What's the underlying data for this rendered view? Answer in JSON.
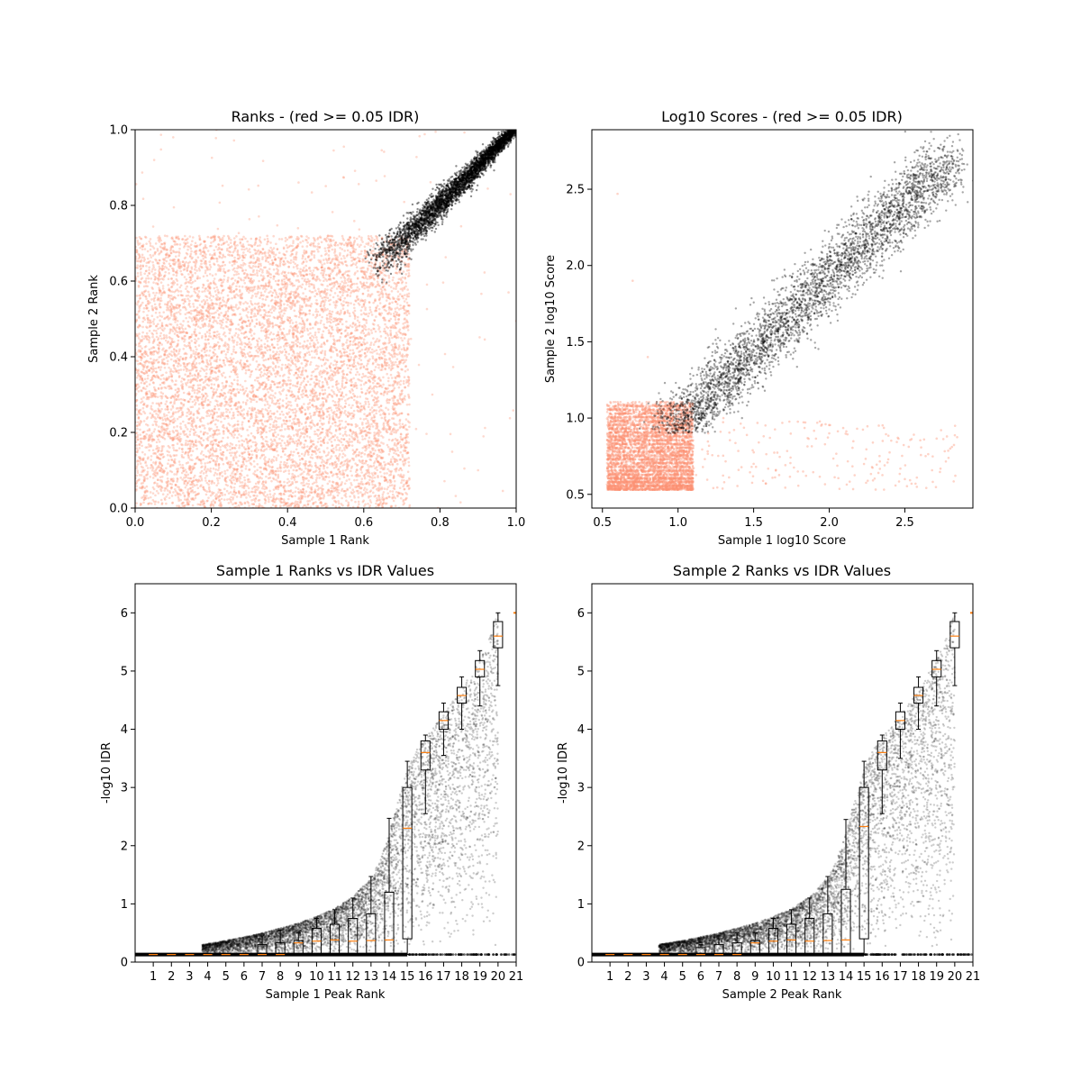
{
  "chart_data": [
    {
      "type": "scatter",
      "title": "Ranks - (red >= 0.05 IDR)",
      "xlabel": "Sample 1 Rank",
      "ylabel": "Sample 2 Rank",
      "xlim": [
        0.0,
        1.0
      ],
      "ylim": [
        0.0,
        1.0
      ],
      "xticks": [
        0.0,
        0.2,
        0.4,
        0.6,
        0.8,
        1.0
      ],
      "xtick_labels": [
        "0.0",
        "0.2",
        "0.4",
        "0.6",
        "0.8",
        "1.0"
      ],
      "yticks": [
        0.0,
        0.2,
        0.4,
        0.6,
        0.8,
        1.0
      ],
      "ytick_labels": [
        "0.0",
        "0.2",
        "0.4",
        "0.6",
        "0.8",
        "1.0"
      ],
      "series_colors": {
        "idr_ge_0_05": "#fc9272",
        "idr_lt_0_05": "#000000"
      },
      "series": [
        {
          "role": "idr_ge_0_05",
          "color": "#fc9272",
          "region_description": "dense uniform block",
          "region": {
            "x": [
              0.0,
              0.72
            ],
            "y": [
              0.0,
              0.72
            ]
          }
        },
        {
          "role": "idr_lt_0_05",
          "color": "#000000",
          "region": "diagonal band from (0.64, 0.64) to (1.0, 1.0)"
        }
      ],
      "points_sample_red": [
        [
          0.05,
          0.05
        ],
        [
          0.15,
          0.35
        ],
        [
          0.3,
          0.6
        ],
        [
          0.45,
          0.2
        ],
        [
          0.6,
          0.5
        ],
        [
          0.7,
          0.1
        ],
        [
          0.1,
          0.68
        ],
        [
          0.55,
          0.68
        ],
        [
          0.78,
          0.3
        ],
        [
          0.9,
          0.1
        ],
        [
          0.98,
          0.57
        ],
        [
          0.05,
          0.92
        ],
        [
          0.1,
          0.98
        ]
      ],
      "points_sample_black": [
        [
          0.66,
          0.66
        ],
        [
          0.7,
          0.7
        ],
        [
          0.75,
          0.76
        ],
        [
          0.8,
          0.8
        ],
        [
          0.85,
          0.86
        ],
        [
          0.9,
          0.9
        ],
        [
          0.95,
          0.95
        ],
        [
          1.0,
          1.0
        ]
      ]
    },
    {
      "type": "scatter",
      "title": "Log10 Scores - (red >= 0.05 IDR)",
      "xlabel": "Sample 1 log10 Score",
      "ylabel": "Sample 2 log10 Score",
      "xlim": [
        0.43,
        2.95
      ],
      "ylim": [
        0.41,
        2.89
      ],
      "xticks": [
        0.5,
        1.0,
        1.5,
        2.0,
        2.5
      ],
      "xtick_labels": [
        "0.5",
        "1.0",
        "1.5",
        "2.0",
        "2.5"
      ],
      "yticks": [
        0.5,
        1.0,
        1.5,
        2.0,
        2.5
      ],
      "ytick_labels": [
        "0.5",
        "1.0",
        "1.5",
        "2.0",
        "2.5"
      ],
      "series": [
        {
          "role": "idr_ge_0_05",
          "color": "#fc9272",
          "region_description": "dense grid block with horizontal streaks",
          "region": {
            "x": [
              0.53,
              1.1
            ],
            "y": [
              0.53,
              1.1
            ]
          }
        },
        {
          "role": "idr_lt_0_05",
          "color": "#000000",
          "region": "diagonal band from (0.95, 0.9) to (2.85, 2.75)"
        }
      ],
      "points_sample_red": [
        [
          0.6,
          2.47
        ],
        [
          0.7,
          1.9
        ],
        [
          0.8,
          1.4
        ],
        [
          1.2,
          0.9
        ],
        [
          1.5,
          0.7
        ],
        [
          2.0,
          0.9
        ],
        [
          2.5,
          0.6
        ],
        [
          2.8,
          0.8
        ],
        [
          1.1,
          0.65
        ],
        [
          1.3,
          1.0
        ]
      ],
      "points_sample_black": [
        [
          0.95,
          0.9
        ],
        [
          1.2,
          1.2
        ],
        [
          1.5,
          1.5
        ],
        [
          1.8,
          1.75
        ],
        [
          2.0,
          2.0
        ],
        [
          2.3,
          2.25
        ],
        [
          2.6,
          2.55
        ],
        [
          2.85,
          2.75
        ]
      ]
    },
    {
      "type": "scatter",
      "overlay": "box",
      "title": "Sample 1 Ranks vs IDR Values",
      "xlabel": "Sample 1 Peak Rank",
      "ylabel": "-log10 IDR",
      "xlim": [
        0.0,
        21.0
      ],
      "ylim": [
        0.0,
        6.5
      ],
      "xticks": [
        1,
        2,
        3,
        4,
        5,
        6,
        7,
        8,
        9,
        10,
        11,
        12,
        13,
        14,
        15,
        16,
        17,
        18,
        19,
        20,
        21
      ],
      "xtick_labels": [
        "1",
        "2",
        "3",
        "4",
        "5",
        "6",
        "7",
        "8",
        "9",
        "10",
        "11",
        "12",
        "13",
        "14",
        "15",
        "16",
        "17",
        "18",
        "19",
        "20",
        "21"
      ],
      "yticks": [
        0,
        1,
        2,
        3,
        4,
        5,
        6
      ],
      "ytick_labels": [
        "0",
        "1",
        "2",
        "3",
        "4",
        "5",
        "6"
      ],
      "scatter_color": "#000000",
      "median_color": "#ff7f0e",
      "curve": {
        "x": [
          3.7,
          5,
          6,
          7,
          8,
          9,
          10,
          11,
          12,
          13,
          13.5,
          14,
          14.5,
          15,
          15.5,
          16,
          17,
          18,
          19,
          19.5,
          20
        ],
        "y": [
          0.3,
          0.37,
          0.43,
          0.5,
          0.58,
          0.67,
          0.78,
          0.92,
          1.12,
          1.45,
          1.75,
          2.2,
          2.8,
          3.3,
          3.65,
          3.85,
          4.25,
          4.7,
          5.2,
          5.55,
          6.0
        ]
      },
      "boxes": [
        {
          "pos": 1,
          "q1": 0.13,
          "median": 0.13,
          "q3": 0.13,
          "whislo": 0.13,
          "whishi": 0.13
        },
        {
          "pos": 2,
          "q1": 0.13,
          "median": 0.13,
          "q3": 0.13,
          "whislo": 0.13,
          "whishi": 0.13
        },
        {
          "pos": 3,
          "q1": 0.13,
          "median": 0.13,
          "q3": 0.13,
          "whislo": 0.13,
          "whishi": 0.13
        },
        {
          "pos": 4,
          "q1": 0.13,
          "median": 0.13,
          "q3": 0.13,
          "whislo": 0.13,
          "whishi": 0.13
        },
        {
          "pos": 5,
          "q1": 0.13,
          "median": 0.13,
          "q3": 0.13,
          "whislo": 0.13,
          "whishi": 0.13
        },
        {
          "pos": 6,
          "q1": 0.13,
          "median": 0.13,
          "q3": 0.14,
          "whislo": 0.13,
          "whishi": 0.14
        },
        {
          "pos": 7,
          "q1": 0.13,
          "median": 0.13,
          "q3": 0.3,
          "whislo": 0.13,
          "whishi": 0.45
        },
        {
          "pos": 8,
          "q1": 0.13,
          "median": 0.13,
          "q3": 0.33,
          "whislo": 0.13,
          "whishi": 0.55
        },
        {
          "pos": 9,
          "q1": 0.13,
          "median": 0.33,
          "q3": 0.37,
          "whislo": 0.13,
          "whishi": 0.5
        },
        {
          "pos": 10,
          "q1": 0.13,
          "median": 0.36,
          "q3": 0.58,
          "whislo": 0.13,
          "whishi": 0.75
        },
        {
          "pos": 11,
          "q1": 0.14,
          "median": 0.38,
          "q3": 0.65,
          "whislo": 0.13,
          "whishi": 0.9
        },
        {
          "pos": 12,
          "q1": 0.14,
          "median": 0.36,
          "q3": 0.75,
          "whislo": 0.13,
          "whishi": 1.1
        },
        {
          "pos": 13,
          "q1": 0.15,
          "median": 0.37,
          "q3": 0.83,
          "whislo": 0.13,
          "whishi": 1.47
        },
        {
          "pos": 14,
          "q1": 0.15,
          "median": 0.38,
          "q3": 1.2,
          "whislo": 0.13,
          "whishi": 2.47
        },
        {
          "pos": 15,
          "q1": 0.4,
          "median": 2.3,
          "q3": 3.0,
          "whislo": 0.13,
          "whishi": 3.45
        },
        {
          "pos": 16,
          "q1": 3.3,
          "median": 3.6,
          "q3": 3.8,
          "whislo": 2.55,
          "whishi": 3.9
        },
        {
          "pos": 17,
          "q1": 4.0,
          "median": 4.15,
          "q3": 4.3,
          "whislo": 3.55,
          "whishi": 4.45
        },
        {
          "pos": 18,
          "q1": 4.45,
          "median": 4.58,
          "q3": 4.72,
          "whislo": 4.0,
          "whishi": 4.9
        },
        {
          "pos": 19,
          "q1": 4.9,
          "median": 5.03,
          "q3": 5.18,
          "whislo": 4.4,
          "whishi": 5.35
        },
        {
          "pos": 20,
          "q1": 5.4,
          "median": 5.6,
          "q3": 5.85,
          "whislo": 4.75,
          "whishi": 6.0
        }
      ],
      "outlier_band": {
        "y": 0.13,
        "x": [
          15.0,
          21.0
        ]
      }
    },
    {
      "type": "scatter",
      "overlay": "box",
      "title": "Sample 2 Ranks vs IDR Values",
      "xlabel": "Sample 2 Peak Rank",
      "ylabel": "-log10 IDR",
      "xlim": [
        0.0,
        21.0
      ],
      "ylim": [
        0.0,
        6.5
      ],
      "xticks": [
        1,
        2,
        3,
        4,
        5,
        6,
        7,
        8,
        9,
        10,
        11,
        12,
        13,
        14,
        15,
        16,
        17,
        18,
        19,
        20,
        21
      ],
      "xtick_labels": [
        "1",
        "2",
        "3",
        "4",
        "5",
        "6",
        "7",
        "8",
        "9",
        "10",
        "11",
        "12",
        "13",
        "14",
        "15",
        "16",
        "17",
        "18",
        "19",
        "20",
        "21"
      ],
      "yticks": [
        0,
        1,
        2,
        3,
        4,
        5,
        6
      ],
      "ytick_labels": [
        "0",
        "1",
        "2",
        "3",
        "4",
        "5",
        "6"
      ],
      "scatter_color": "#000000",
      "median_color": "#ff7f0e",
      "curve": {
        "x": [
          3.7,
          5,
          6,
          7,
          8,
          9,
          10,
          11,
          12,
          13,
          13.5,
          14,
          14.5,
          15,
          15.5,
          16,
          17,
          18,
          19,
          19.5,
          20
        ],
        "y": [
          0.3,
          0.37,
          0.43,
          0.5,
          0.58,
          0.67,
          0.78,
          0.92,
          1.12,
          1.45,
          1.75,
          2.2,
          2.8,
          3.3,
          3.65,
          3.85,
          4.25,
          4.7,
          5.2,
          5.55,
          6.0
        ]
      },
      "boxes": [
        {
          "pos": 1,
          "q1": 0.13,
          "median": 0.13,
          "q3": 0.13,
          "whislo": 0.13,
          "whishi": 0.13
        },
        {
          "pos": 2,
          "q1": 0.13,
          "median": 0.13,
          "q3": 0.13,
          "whislo": 0.13,
          "whishi": 0.13
        },
        {
          "pos": 3,
          "q1": 0.13,
          "median": 0.13,
          "q3": 0.13,
          "whislo": 0.13,
          "whishi": 0.13
        },
        {
          "pos": 4,
          "q1": 0.13,
          "median": 0.13,
          "q3": 0.13,
          "whislo": 0.13,
          "whishi": 0.13
        },
        {
          "pos": 5,
          "q1": 0.13,
          "median": 0.13,
          "q3": 0.13,
          "whislo": 0.13,
          "whishi": 0.13
        },
        {
          "pos": 6,
          "q1": 0.13,
          "median": 0.13,
          "q3": 0.25,
          "whislo": 0.13,
          "whishi": 0.3
        },
        {
          "pos": 7,
          "q1": 0.13,
          "median": 0.13,
          "q3": 0.3,
          "whislo": 0.13,
          "whishi": 0.45
        },
        {
          "pos": 8,
          "q1": 0.13,
          "median": 0.13,
          "q3": 0.33,
          "whislo": 0.13,
          "whishi": 0.5
        },
        {
          "pos": 9,
          "q1": 0.13,
          "median": 0.33,
          "q3": 0.37,
          "whislo": 0.13,
          "whishi": 0.5
        },
        {
          "pos": 10,
          "q1": 0.13,
          "median": 0.36,
          "q3": 0.58,
          "whislo": 0.13,
          "whishi": 0.75
        },
        {
          "pos": 11,
          "q1": 0.14,
          "median": 0.38,
          "q3": 0.65,
          "whislo": 0.13,
          "whishi": 0.9
        },
        {
          "pos": 12,
          "q1": 0.14,
          "median": 0.36,
          "q3": 0.75,
          "whislo": 0.13,
          "whishi": 1.1
        },
        {
          "pos": 13,
          "q1": 0.15,
          "median": 0.37,
          "q3": 0.83,
          "whislo": 0.13,
          "whishi": 1.47
        },
        {
          "pos": 14,
          "q1": 0.15,
          "median": 0.38,
          "q3": 1.25,
          "whislo": 0.13,
          "whishi": 2.45
        },
        {
          "pos": 15,
          "q1": 0.4,
          "median": 2.33,
          "q3": 3.0,
          "whislo": 0.13,
          "whishi": 3.45
        },
        {
          "pos": 16,
          "q1": 3.3,
          "median": 3.6,
          "q3": 3.8,
          "whislo": 2.55,
          "whishi": 3.9
        },
        {
          "pos": 17,
          "q1": 4.0,
          "median": 4.15,
          "q3": 4.3,
          "whislo": 3.5,
          "whishi": 4.45
        },
        {
          "pos": 18,
          "q1": 4.45,
          "median": 4.58,
          "q3": 4.72,
          "whislo": 4.0,
          "whishi": 4.9
        },
        {
          "pos": 19,
          "q1": 4.9,
          "median": 5.03,
          "q3": 5.18,
          "whislo": 4.4,
          "whishi": 5.35
        },
        {
          "pos": 20,
          "q1": 5.4,
          "median": 5.6,
          "q3": 5.85,
          "whislo": 4.75,
          "whishi": 6.0
        }
      ],
      "outlier_band": {
        "y": 0.13,
        "x": [
          15.0,
          21.0
        ]
      }
    }
  ]
}
